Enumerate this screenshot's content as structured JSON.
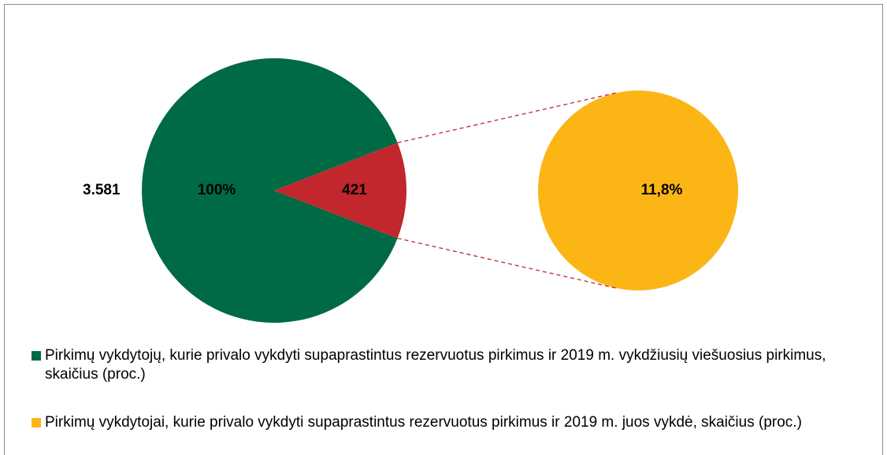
{
  "chart_data": {
    "type": "pie",
    "pies": [
      {
        "name": "Pirkimų vykdytojų, kurie privalo vykdyti supaprastintus rezervuotus pirkimus ir 2019 m. vykdžiusių viešuosius pirkimus, skaičius (proc.)",
        "color": "#006a44",
        "value": 3581,
        "value_label": "3.581",
        "share": 100,
        "share_label": "100%",
        "slice": {
          "value": 421,
          "color": "#c1272d"
        }
      },
      {
        "name": "Pirkimų vykdytojai, kurie privalo vykdyti supaprastintus rezervuotus pirkimus ir 2019 m. juos vykdė, skaičius (proc.)",
        "color": "#fbb515",
        "share": 11.8,
        "share_label": "11,8%"
      }
    ]
  }
}
